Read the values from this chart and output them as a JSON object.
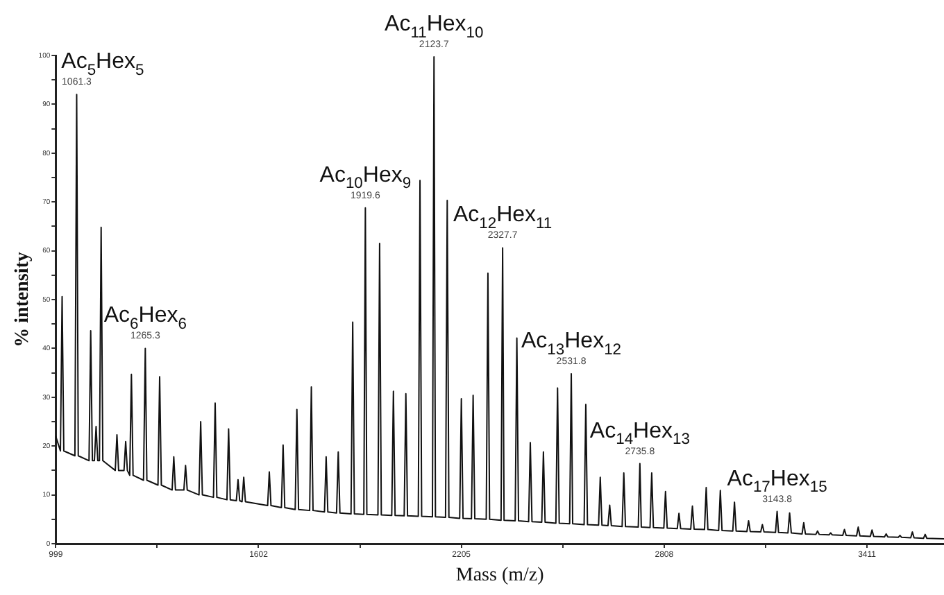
{
  "chart_data": {
    "type": "line",
    "xlabel": "Mass (m/z)",
    "ylabel": "% intensity",
    "color": "#111111",
    "x": [
      999,
      1013,
      1018,
      1023,
      1056,
      1061.3,
      1066,
      1098,
      1103,
      1108,
      1114,
      1119,
      1124,
      1129,
      1134,
      1139,
      1176,
      1181,
      1186,
      1202,
      1207,
      1212,
      1219,
      1224,
      1229,
      1260,
      1265.3,
      1270,
      1303,
      1308,
      1313,
      1345,
      1350,
      1355,
      1380,
      1385,
      1390,
      1425,
      1430,
      1435,
      1468,
      1473,
      1478,
      1508,
      1513,
      1518,
      1536,
      1541,
      1546,
      1553,
      1558,
      1563,
      1629,
      1634,
      1639,
      1670,
      1675,
      1680,
      1711,
      1716,
      1721,
      1754,
      1759,
      1764,
      1798,
      1803,
      1808,
      1834,
      1839,
      1844,
      1877,
      1882,
      1887,
      1915,
      1919.6,
      1924,
      1957,
      1962,
      1967,
      1998,
      2003,
      2008,
      2035,
      2040,
      2045,
      2077,
      2082,
      2087,
      2119,
      2123.7,
      2128,
      2158,
      2163,
      2168,
      2200,
      2205,
      2210,
      2235,
      2240,
      2245,
      2279,
      2284,
      2289,
      2323,
      2327.7,
      2332,
      2365,
      2370,
      2375,
      2405,
      2410,
      2415,
      2444,
      2449,
      2454,
      2486,
      2491,
      2496,
      2527,
      2531.8,
      2536,
      2570,
      2575,
      2580,
      2613,
      2618,
      2623,
      2641,
      2646,
      2651,
      2683,
      2688,
      2693,
      2731,
      2735.8,
      2740,
      2766,
      2771,
      2776,
      2807,
      2812,
      2817,
      2847,
      2852,
      2857,
      2887,
      2892,
      2897,
      2928,
      2933,
      2938,
      2970,
      2975,
      2980,
      3012,
      3017,
      3022,
      3054,
      3059,
      3064,
      3095,
      3100,
      3105,
      3139,
      3143.8,
      3148,
      3176,
      3181,
      3186,
      3218,
      3223,
      3228,
      3259,
      3264,
      3269,
      3298,
      3303,
      3308,
      3339,
      3344,
      3349,
      3380,
      3385,
      3390,
      3421,
      3426,
      3431,
      3463,
      3468,
      3473,
      3504,
      3509,
      3514,
      3541,
      3546,
      3551,
      3579,
      3584,
      3589,
      3640
    ],
    "values": [
      22,
      19,
      50.6,
      19,
      18,
      92,
      18,
      17,
      43.6,
      17,
      17,
      24,
      17,
      17,
      64.8,
      17,
      15,
      22.3,
      15,
      15,
      20.9,
      15,
      14,
      34.7,
      14,
      13,
      40,
      13,
      12,
      34.2,
      12,
      11,
      17.8,
      11,
      11,
      16,
      11,
      10,
      25,
      10,
      9.5,
      28.8,
      9.5,
      9,
      23.5,
      9,
      8.8,
      13.1,
      8.8,
      8.6,
      13.6,
      8.6,
      7.8,
      14.7,
      7.8,
      7.4,
      20.2,
      7.4,
      7,
      27.5,
      7,
      6.8,
      32.1,
      6.8,
      6.5,
      17.8,
      6.5,
      6.3,
      18.8,
      6.3,
      6.1,
      45.4,
      6.1,
      6,
      68.8,
      6,
      5.9,
      61.5,
      5.9,
      5.8,
      31.2,
      5.8,
      5.7,
      30.7,
      5.7,
      5.6,
      74.4,
      5.6,
      5.5,
      99.7,
      5.5,
      5.4,
      70.3,
      5.4,
      5.2,
      29.7,
      5.2,
      5.1,
      30.4,
      5.1,
      5,
      55.4,
      5,
      4.8,
      60.6,
      4.8,
      4.7,
      42.1,
      4.7,
      4.5,
      20.7,
      4.5,
      4.4,
      18.8,
      4.4,
      4.2,
      31.9,
      4.2,
      4.1,
      34.8,
      4.1,
      3.9,
      28.5,
      3.9,
      3.8,
      13.6,
      3.8,
      3.7,
      7.9,
      3.7,
      3.5,
      14.5,
      3.5,
      3.4,
      16.4,
      3.4,
      3.3,
      14.5,
      3.3,
      3.2,
      10.7,
      3.2,
      3.1,
      6.2,
      3.1,
      3,
      7.7,
      3,
      2.9,
      11.5,
      2.9,
      2.7,
      10.9,
      2.7,
      2.6,
      8.5,
      2.6,
      2.5,
      4.7,
      2.5,
      2.4,
      3.9,
      2.4,
      2.3,
      6.6,
      2.3,
      2.2,
      6.3,
      2.2,
      2,
      4.3,
      2,
      1.9,
      2.6,
      1.9,
      1.8,
      2.2,
      1.8,
      1.7,
      2.9,
      1.7,
      1.6,
      3.4,
      1.6,
      1.5,
      2.8,
      1.5,
      1.4,
      2,
      1.4,
      1.3,
      1.7,
      1.3,
      1.2,
      2.4,
      1.2,
      1.1,
      1.9,
      1.1,
      1
    ],
    "xlim": [
      999,
      3640
    ],
    "xticks": [
      999,
      {
        "value": 1300.5,
        "label": null
      },
      1602,
      {
        "value": 1903.5,
        "label": null
      },
      2205,
      {
        "value": 2506.5,
        "label": null
      },
      2808,
      {
        "value": 3109.5,
        "label": null
      },
      3411
    ],
    "ylim": [
      0,
      100
    ],
    "yticks": [
      0,
      {
        "value": 5,
        "label": null
      },
      10,
      {
        "value": 15,
        "label": null
      },
      20,
      {
        "value": 25,
        "label": null
      },
      30,
      {
        "value": 35,
        "label": null
      },
      40,
      {
        "value": 45,
        "label": null
      },
      50,
      {
        "value": 55,
        "label": null
      },
      60,
      {
        "value": 65,
        "label": null
      },
      70,
      {
        "value": 75,
        "label": null
      },
      80,
      {
        "value": 85,
        "label": null
      },
      90,
      {
        "value": 95,
        "label": null
      },
      100
    ],
    "grid": false,
    "legend": false,
    "marker": "none",
    "line_style": "solid",
    "annotations": [
      {
        "text": "1061.3",
        "x": 1061.3,
        "y": 92
      },
      {
        "text": "Ac$_{5}$Hex$_{5}$",
        "x": 1061.3,
        "y": 92
      },
      {
        "text": "1265.3",
        "x": 1265.3,
        "y": 40
      },
      {
        "text": "Ac$_{6}$Hex$_{6}$",
        "x": 1265.3,
        "y": 40
      },
      {
        "text": "1919.6",
        "x": 1919.6,
        "y": 68.8
      },
      {
        "text": "Ac$_{10}$Hex$_{9}$",
        "x": 1919.6,
        "y": 68.8
      },
      {
        "text": "2123.7",
        "x": 2123.7,
        "y": 99.7
      },
      {
        "text": "Ac$_{11}$Hex$_{10}$",
        "x": 2123.7,
        "y": 99.7
      },
      {
        "text": "2327.7",
        "x": 2327.7,
        "y": 60.6
      },
      {
        "text": "Ac$_{12}$Hex$_{11}$",
        "x": 2327.7,
        "y": 60.6
      },
      {
        "text": "2531.8",
        "x": 2531.8,
        "y": 34.8
      },
      {
        "text": "Ac$_{13}$Hex$_{12}$",
        "x": 2531.8,
        "y": 34.8
      },
      {
        "text": "2735.8",
        "x": 2735.8,
        "y": 16.4
      },
      {
        "text": "Ac$_{14}$Hex$_{13}$",
        "x": 2735.8,
        "y": 16.4
      },
      {
        "text": "3143.8",
        "x": 3143.8,
        "y": 6.6
      },
      {
        "text": "Ac$_{17}$Hex$_{15}$",
        "x": 3143.8,
        "y": 6.6
      }
    ]
  }
}
